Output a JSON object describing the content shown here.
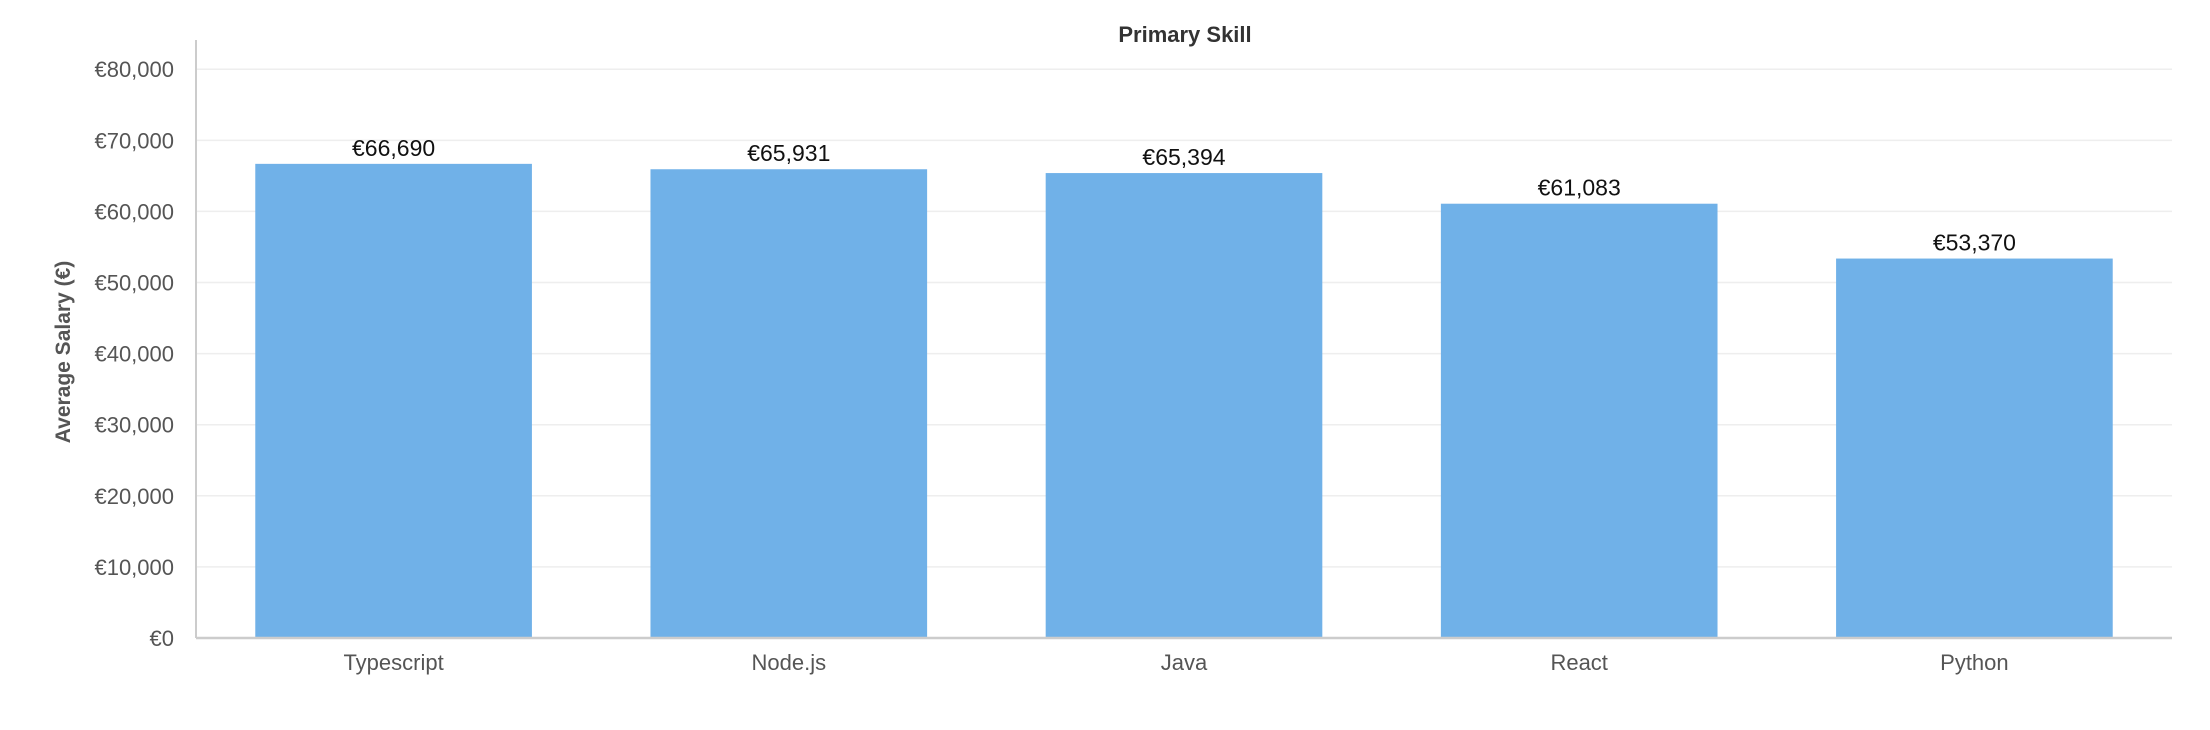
{
  "chart_data": {
    "type": "bar",
    "title": "Primary Skill",
    "xlabel": "",
    "ylabel": "Average Salary (€)",
    "categories": [
      "Typescript",
      "Node.js",
      "Java",
      "React",
      "Python"
    ],
    "values": [
      66690,
      65931,
      65394,
      61083,
      53370
    ],
    "data_labels": [
      "€66,690",
      "€65,931",
      "€65,394",
      "€61,083",
      "€53,370"
    ],
    "yticks": [
      0,
      10000,
      20000,
      30000,
      40000,
      50000,
      60000,
      70000,
      80000
    ],
    "ytick_labels": [
      "€0",
      "€10,000",
      "€20,000",
      "€30,000",
      "€40,000",
      "€50,000",
      "€60,000",
      "€70,000",
      "€80,000"
    ],
    "ylim": [
      0,
      82000
    ],
    "grid": true,
    "legend": "none",
    "colors": {
      "bar": "#70b1e8",
      "grid": "#eeeeee",
      "axis": "#cccccc"
    }
  }
}
